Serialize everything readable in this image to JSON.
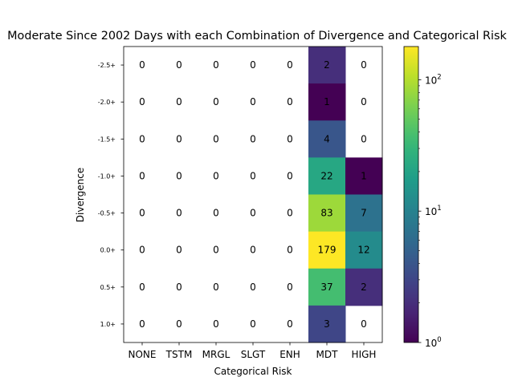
{
  "chart_data": {
    "type": "heatmap",
    "title": "Moderate Since 2002 Days with each Combination of Divergence and Categorical Risk",
    "xlabel": "Categorical Risk",
    "ylabel": "Divergence",
    "x_categories": [
      "NONE",
      "TSTM",
      "MRGL",
      "SLGT",
      "ENH",
      "MDT",
      "HIGH"
    ],
    "y_categories": [
      "-2.5+",
      "-2.0+",
      "-1.5+",
      "-1.0+",
      "-0.5+",
      "0.0+",
      "0.5+",
      "1.0+"
    ],
    "values": [
      [
        0,
        0,
        0,
        0,
        0,
        2,
        0
      ],
      [
        0,
        0,
        0,
        0,
        0,
        1,
        0
      ],
      [
        0,
        0,
        0,
        0,
        0,
        4,
        0
      ],
      [
        0,
        0,
        0,
        0,
        0,
        22,
        1
      ],
      [
        0,
        0,
        0,
        0,
        0,
        83,
        7
      ],
      [
        0,
        0,
        0,
        0,
        0,
        179,
        12
      ],
      [
        0,
        0,
        0,
        0,
        0,
        37,
        2
      ],
      [
        0,
        0,
        0,
        0,
        0,
        3,
        0
      ]
    ],
    "colorbar": {
      "scale": "log",
      "colormap": "viridis",
      "range": [
        1,
        179
      ],
      "ticks": [
        {
          "value": 1,
          "base": "10",
          "exp": "0"
        },
        {
          "value": 10,
          "base": "10",
          "exp": "1"
        },
        {
          "value": 100,
          "base": "10",
          "exp": "2"
        }
      ]
    },
    "zero_cells": "blank",
    "grid": false
  }
}
